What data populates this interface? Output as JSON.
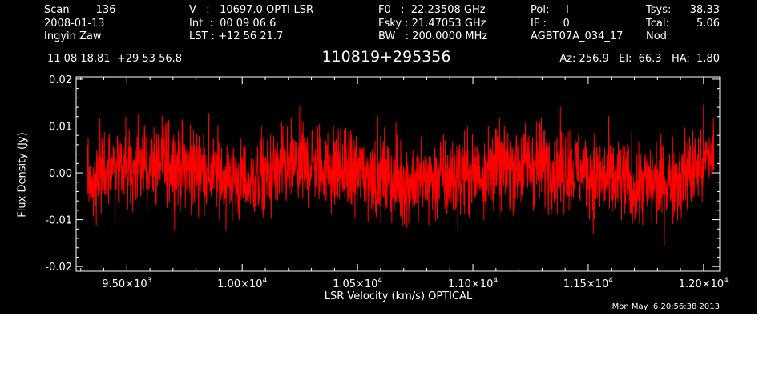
{
  "header": {
    "col1": [
      "Scan        136",
      "2008-01-13",
      "Ingyin Zaw"
    ],
    "col2": [
      "V   :   10697.0 OPTI-LSR",
      "Int  :  00 09 06.6",
      "LST : +12 56 21.7"
    ],
    "col3": [
      "F0   :  22.23508 GHz",
      "Fsky : 21.47053 GHz",
      "BW   : 200.0000 MHz"
    ],
    "col4": [
      "Pol:     I",
      "IF :     0",
      "AGBT07A_034_17"
    ],
    "col5_labels": [
      "Tsys:",
      "Tcal:",
      "Nod"
    ],
    "col5_values": [
      "38.33",
      "5.06",
      ""
    ],
    "coords": "11 08 18.81  +29 53 56.8",
    "source": "110819+295356",
    "azelha": "Az: 256.9   El:  66.3   HA:  1.80"
  },
  "footer": {
    "timestamp": "Mon May  6 20:56:38 2013"
  },
  "chart_data": {
    "type": "line",
    "xlabel": "LSR Velocity (km/s) OPTICAL",
    "ylabel": "Flux Density (Jy)",
    "xlim": [
      9280,
      12070
    ],
    "ylim": [
      -0.021,
      0.0205
    ],
    "x_ticks": [
      {
        "value": 9500,
        "mantissa": "9.50",
        "exp": "3"
      },
      {
        "value": 10000,
        "mantissa": "1.00",
        "exp": "4"
      },
      {
        "value": 10500,
        "mantissa": "1.05",
        "exp": "4"
      },
      {
        "value": 11000,
        "mantissa": "1.10",
        "exp": "4"
      },
      {
        "value": 11500,
        "mantissa": "1.15",
        "exp": "4"
      },
      {
        "value": 12000,
        "mantissa": "1.20",
        "exp": "4"
      }
    ],
    "y_ticks": [
      {
        "value": -0.02,
        "label": "-0.02"
      },
      {
        "value": -0.01,
        "label": "-0.01"
      },
      {
        "value": 0.0,
        "label": "0.00"
      },
      {
        "value": 0.01,
        "label": "0.01"
      },
      {
        "value": 0.02,
        "label": "0.02"
      }
    ],
    "grid": false,
    "series": [
      {
        "color": "#ff0000",
        "x_start": 9330,
        "x_end": 12045,
        "baseline": [
          [
            9330,
            -0.002
          ],
          [
            9450,
            0.001
          ],
          [
            9700,
            0.002
          ],
          [
            10000,
            -0.002
          ],
          [
            10300,
            0.002
          ],
          [
            10500,
            0.0
          ],
          [
            10700,
            -0.002
          ],
          [
            10900,
            -0.001
          ],
          [
            11100,
            0.001
          ],
          [
            11300,
            0.002
          ],
          [
            11500,
            0.0
          ],
          [
            11700,
            -0.003
          ],
          [
            11900,
            -0.001
          ],
          [
            12000,
            0.002
          ],
          [
            12045,
            0.004
          ]
        ],
        "noise_rms": 0.0045,
        "peak_max": 0.019,
        "peak_min": -0.018
      }
    ]
  }
}
